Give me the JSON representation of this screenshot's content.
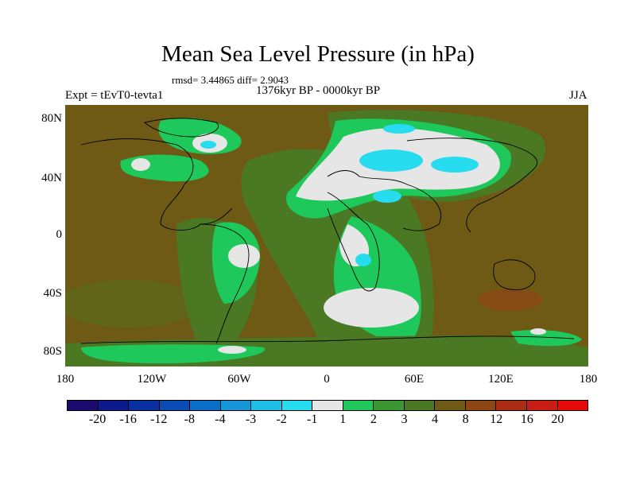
{
  "title": "Mean Sea Level Pressure (in hPa)",
  "stats": "rmsd= 3.44865 diff= 2.9043",
  "experiment": "Expt = tEvT0-tevta1",
  "period": "1376kyr BP - 0000kyr BP",
  "season": "JJA",
  "lat_labels": [
    "80N",
    "40N",
    "0",
    "40S",
    "80S"
  ],
  "lon_labels": [
    "180",
    "120W",
    "60W",
    "0",
    "60E",
    "120E",
    "180"
  ],
  "colorbar": {
    "labels": [
      "-20",
      "-16",
      "-12",
      "-8",
      "-4",
      "-3",
      "-2",
      "-1",
      "1",
      "2",
      "3",
      "4",
      "8",
      "12",
      "16",
      "20"
    ],
    "colors": [
      "#1a0a6e",
      "#0d1a8c",
      "#0a2fa0",
      "#0a4bb4",
      "#0a6ec8",
      "#1496d8",
      "#1ebee6",
      "#28dcef",
      "#e6e6e6",
      "#1ec85a",
      "#3c9632",
      "#4b7823",
      "#6e5a14",
      "#8c4614",
      "#aa2d14",
      "#c81e14",
      "#e60a0a"
    ]
  }
}
